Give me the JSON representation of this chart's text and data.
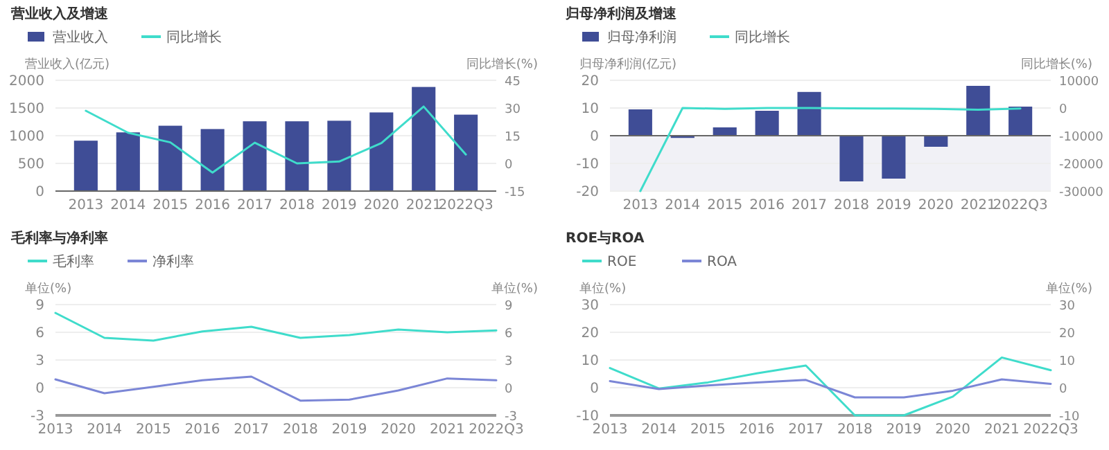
{
  "chart_data": [
    {
      "type": "bar",
      "title": "营业收入及增速",
      "ylabel": "营业收入(亿元)",
      "y2label": "同比增长(%)",
      "categories": [
        "2013",
        "2014",
        "2015",
        "2016",
        "2017",
        "2018",
        "2019",
        "2020",
        "2021",
        "2022Q3"
      ],
      "series": [
        {
          "name": "营业收入",
          "type": "bar",
          "color": "#3f4d96",
          "values": [
            910,
            1060,
            1180,
            1120,
            1260,
            1260,
            1270,
            1420,
            1880,
            1380
          ]
        },
        {
          "name": "同比增长",
          "type": "line",
          "axis": "y2",
          "color": "#3fdccb",
          "values": [
            28.5,
            16.6,
            11.4,
            -5,
            11.2,
            0,
            1,
            11,
            30.8,
            4.8
          ]
        }
      ],
      "ylim": [
        0,
        2000
      ],
      "yticks": [
        0,
        500,
        1000,
        1500,
        2000
      ],
      "y2lim": [
        -15,
        45
      ],
      "y2ticks": [
        -15,
        0,
        15,
        30,
        45
      ],
      "grid": "y",
      "legend": "top left"
    },
    {
      "type": "bar",
      "title": "归母净利润及增速",
      "ylabel": "归母净利润(亿元)",
      "y2label": "同比增长(%)",
      "categories": [
        "2013",
        "2014",
        "2015",
        "2016",
        "2017",
        "2018",
        "2019",
        "2020",
        "2021",
        "2022Q3"
      ],
      "series": [
        {
          "name": "归母净利润",
          "type": "bar",
          "color": "#3f4d96",
          "values": [
            9.5,
            -0.8,
            3,
            9,
            15.8,
            -16.5,
            -15.5,
            -4,
            18,
            10.5
          ]
        },
        {
          "name": "同比增长",
          "type": "line",
          "axis": "y2",
          "color": "#3fdccb",
          "values": [
            -30000,
            0,
            -300,
            0,
            0,
            -100,
            -200,
            -300,
            -600,
            -200
          ]
        }
      ],
      "ylim": [
        -20,
        20
      ],
      "yticks": [
        -20,
        -10,
        0,
        10,
        20
      ],
      "y2lim": [
        -30000,
        10000
      ],
      "y2ticks": [
        -30000,
        -20000,
        -10000,
        0,
        10000
      ],
      "grid": "y",
      "legend": "top left",
      "bands": [
        {
          "axis": "y",
          "from": -20,
          "to": 0,
          "color": "#f1f1f6"
        }
      ]
    },
    {
      "type": "line",
      "title": "毛利率与净利率",
      "ylabel": "单位(%)",
      "y2label": "单位(%)",
      "categories": [
        "2013",
        "2014",
        "2015",
        "2016",
        "2017",
        "2018",
        "2019",
        "2020",
        "2021",
        "2022Q3"
      ],
      "series": [
        {
          "name": "毛利率",
          "color": "#3fdccb",
          "values": [
            8.1,
            5.4,
            5.1,
            6.1,
            6.6,
            5.4,
            5.7,
            6.3,
            6,
            6.2
          ]
        },
        {
          "name": "净利率",
          "color": "#7b86d6",
          "values": [
            0.9,
            -0.6,
            0.1,
            0.8,
            1.2,
            -1.4,
            -1.3,
            -0.3,
            1,
            0.8
          ]
        }
      ],
      "ylim": [
        -3,
        9
      ],
      "yticks": [
        -3,
        0,
        3,
        6,
        9
      ],
      "y2lim": [
        -3,
        9
      ],
      "y2ticks": [
        -3,
        0,
        3,
        6,
        9
      ],
      "grid": "y",
      "legend": "top left"
    },
    {
      "type": "line",
      "title": "ROE与ROA",
      "ylabel": "单位(%)",
      "y2label": "单位(%)",
      "categories": [
        "2013",
        "2014",
        "2015",
        "2016",
        "2017",
        "2018",
        "2019",
        "2020",
        "2021",
        "2022Q3"
      ],
      "series": [
        {
          "name": "ROE",
          "color": "#3fdccb",
          "values": [
            7.1,
            -0.3,
            1.9,
            5.2,
            8,
            -10,
            -10,
            -3.2,
            10.9,
            6.3
          ]
        },
        {
          "name": "ROA",
          "color": "#7b86d6",
          "values": [
            2.4,
            -0.5,
            0.8,
            1.9,
            2.8,
            -3.5,
            -3.5,
            -1.1,
            3,
            1.4
          ]
        }
      ],
      "ylim": [
        -10,
        30
      ],
      "yticks": [
        -10,
        0,
        10,
        20,
        30
      ],
      "y2lim": [
        -10,
        30
      ],
      "y2ticks": [
        -10,
        0,
        10,
        20,
        30
      ],
      "grid": "y",
      "legend": "top left"
    }
  ]
}
